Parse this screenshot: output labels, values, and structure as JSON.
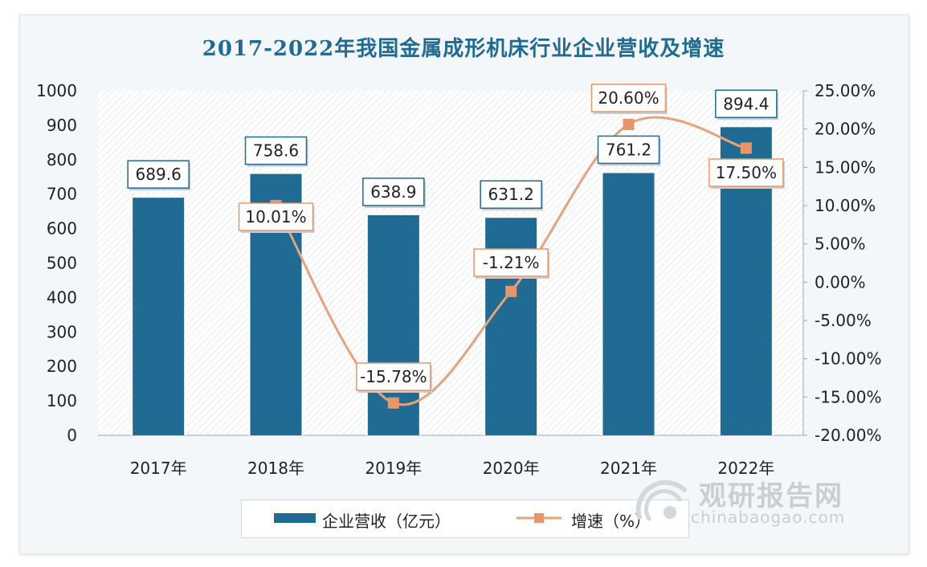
{
  "title": "2017-2022年我国金属成形机床行业企业营收及增速",
  "chart_data": {
    "type": "bar",
    "categories": [
      "2017年",
      "2018年",
      "2019年",
      "2020年",
      "2021年",
      "2022年"
    ],
    "series": [
      {
        "name": "企业营收（亿元）",
        "type": "bar",
        "axis": "left",
        "values": [
          689.6,
          758.6,
          638.9,
          631.2,
          761.2,
          894.4
        ],
        "labels": [
          "689.6",
          "758.6",
          "638.9",
          "631.2",
          "761.2",
          "894.4"
        ]
      },
      {
        "name": "增速（%）",
        "type": "line",
        "axis": "right",
        "values": [
          null,
          10.01,
          -15.78,
          -1.21,
          20.6,
          17.5
        ],
        "labels": [
          "",
          "10.01%",
          "-15.78%",
          "-1.21%",
          "20.60%",
          "17.50%"
        ]
      }
    ],
    "left_axis": {
      "ylim": [
        0,
        1000
      ],
      "ticks": [
        "0",
        "100",
        "200",
        "300",
        "400",
        "500",
        "600",
        "700",
        "800",
        "900",
        "1000"
      ]
    },
    "right_axis": {
      "ylim": [
        -20,
        25
      ],
      "ticks": [
        "-20.00%",
        "-15.00%",
        "-10.00%",
        "-5.00%",
        "0.00%",
        "5.00%",
        "10.00%",
        "15.00%",
        "20.00%",
        "25.00%"
      ]
    },
    "legend_position": "bottom",
    "colors": {
      "bar": "#1f6b93",
      "line": "#e8a27a",
      "marker": "#e8956a",
      "label_border_bar": "#1f6b93",
      "label_border_line": "#e8956a"
    }
  },
  "legend": {
    "bar_label": "企业营收（亿元）",
    "line_label": "增速（%）"
  },
  "watermark": {
    "cn": "观研报告网",
    "en": "chinabaogao.com"
  }
}
